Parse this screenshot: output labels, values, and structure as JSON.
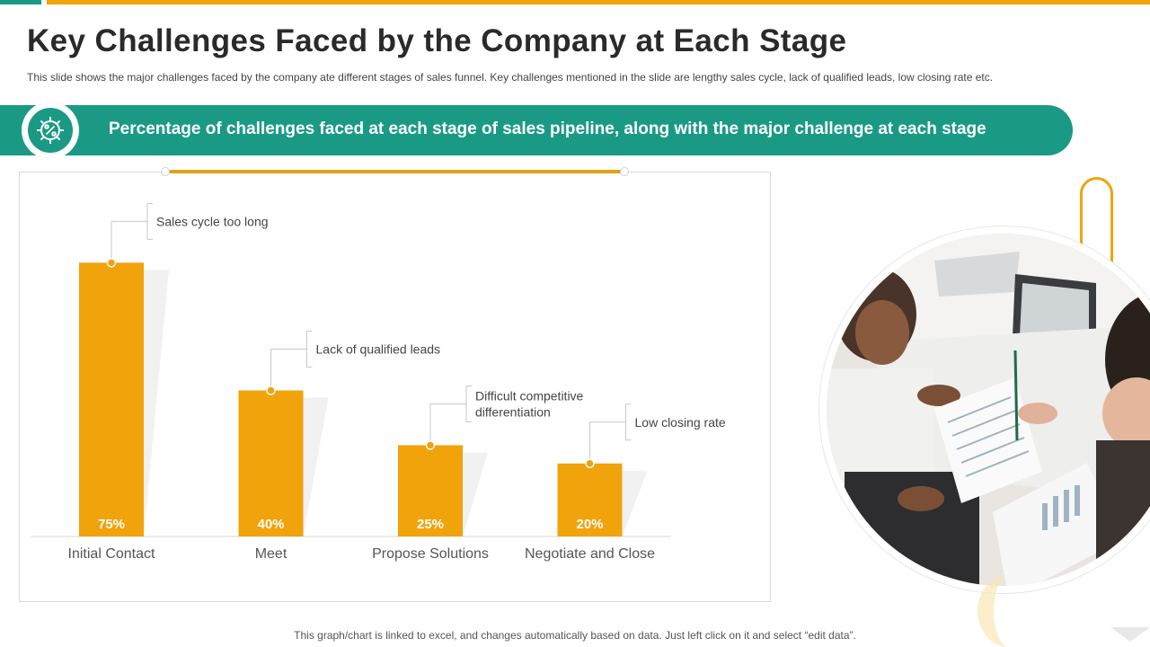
{
  "slide": {
    "title": "Key Challenges Faced by the Company at Each Stage",
    "subtitle": "This slide shows the major challenges faced by the company ate different  stages of sales funnel. Key challenges mentioned in the slide are lengthy sales cycle, lack of qualified leads, low closing rate etc.",
    "banner_text": "Percentage of challenges faced at each stage of sales pipeline, along with the major challenge at each stage",
    "banner_icon": "percent-gear-icon",
    "footer_note": "This graph/chart is linked to excel, and changes automatically based on data. Just left click on it and select “edit data”.",
    "photo": "business-meeting-photo"
  },
  "colors": {
    "accent_gold": "#f0a30a",
    "accent_teal": "#1a9a85",
    "bar": "#f0a30a"
  },
  "chart_data": {
    "type": "bar",
    "categories": [
      "Initial Contact",
      "Meet",
      "Propose Solutions",
      "Negotiate and Close"
    ],
    "values": [
      75,
      40,
      25,
      20
    ],
    "value_labels": [
      "75%",
      "40%",
      "25%",
      "20%"
    ],
    "annotations": [
      [
        "Sales cycle too long"
      ],
      [
        "Lack of qualified leads"
      ],
      [
        "Difficult competitive",
        "differentiation"
      ],
      [
        "Low closing rate"
      ]
    ],
    "ylim": [
      0,
      80
    ],
    "grid": false,
    "legend": "none"
  }
}
